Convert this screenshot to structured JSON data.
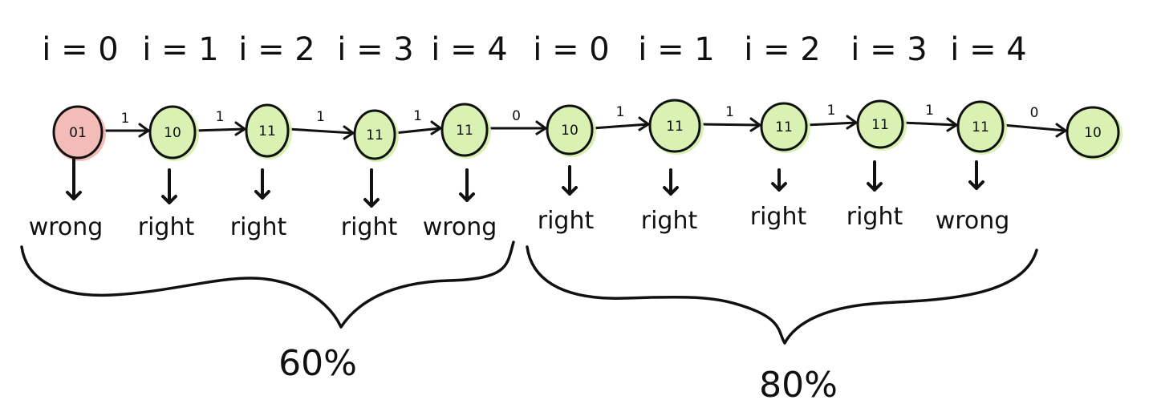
{
  "iterations": [
    "i = 0",
    "i = 1",
    "i = 2",
    "i = 3",
    "i = 4",
    "i = 0",
    "i = 1",
    "i = 2",
    "i = 3",
    "i = 4"
  ],
  "states": [
    {
      "label": "01",
      "status": "wrong"
    },
    {
      "label": "10",
      "status": "correct"
    },
    {
      "label": "11",
      "status": "correct"
    },
    {
      "label": "11",
      "status": "correct"
    },
    {
      "label": "11",
      "status": "correct"
    },
    {
      "label": "10",
      "status": "correct"
    },
    {
      "label": "11",
      "status": "correct"
    },
    {
      "label": "11",
      "status": "correct"
    },
    {
      "label": "11",
      "status": "correct"
    },
    {
      "label": "11",
      "status": "correct"
    },
    {
      "label": "10",
      "status": "correct"
    }
  ],
  "transitions": [
    "1",
    "1",
    "1",
    "1",
    "0",
    "1",
    "1",
    "1",
    "1",
    "0"
  ],
  "verdicts": [
    "wrong",
    "right",
    "right",
    "right",
    "wrong",
    "right",
    "right",
    "right",
    "right",
    "wrong"
  ],
  "groups": [
    {
      "percent": "60%"
    },
    {
      "percent": "80%"
    }
  ],
  "colors": {
    "ink": "#111111",
    "wrong_fill": "#f2b8b4",
    "correct_fill": "#d8f0b0",
    "correct_halo": "#cdeaa0"
  }
}
